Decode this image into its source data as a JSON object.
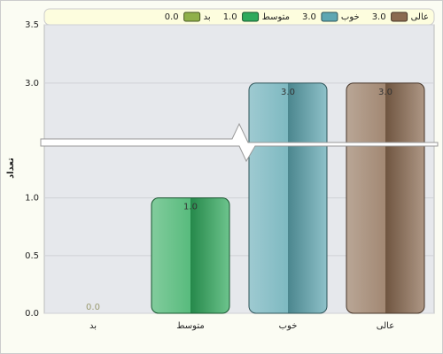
{
  "chart_data": {
    "type": "bar",
    "y_label": "تعداد",
    "categories": [
      "بد",
      "متوسط",
      "خوب",
      "عالی"
    ],
    "values": [
      0,
      1,
      3,
      3
    ],
    "value_labels": [
      "0.0",
      "1.0",
      "3.0",
      "3.0"
    ],
    "colors": [
      "#8fb04a",
      "#2eaa5c",
      "#5ea7b2",
      "#8b6a50"
    ],
    "ylim": [
      0,
      3.5
    ],
    "axis_break": [
      1.45,
      2.52
    ],
    "yticks": [
      {
        "value": 0,
        "label": "0.0"
      },
      0.5,
      {
        "value": 1,
        "label": "1.0"
      },
      {
        "value": 3,
        "label": "3.0"
      },
      3.5
    ],
    "grid": true
  }
}
